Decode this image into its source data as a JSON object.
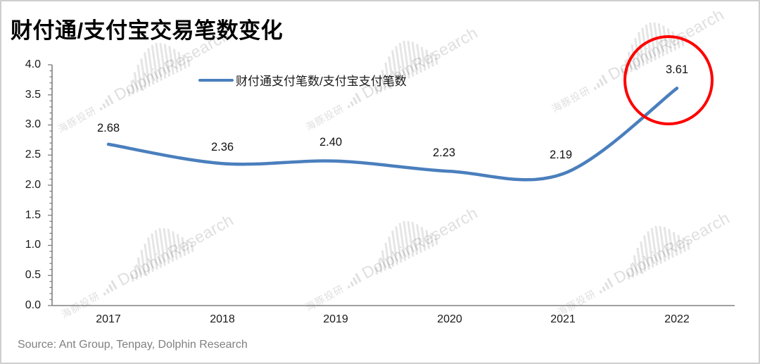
{
  "title": "财付通/支付宝交易笔数变化",
  "legend": {
    "label": "财付通支付笔数/支付宝支付笔数"
  },
  "source": "Source: Ant Group, Tenpay, Dolphin Research",
  "watermark": {
    "cn": "海豚投研",
    "en": "DolphinResearch"
  },
  "colors": {
    "line": "#4a7fbd",
    "highlight_circle": "#fe0000",
    "axis": "#808080",
    "title": "#000000",
    "source_text": "#808080"
  },
  "axis": {
    "y_ticks": [
      "4.0",
      "3.5",
      "3.0",
      "2.5",
      "2.0",
      "1.5",
      "1.0",
      "0.5",
      "0.0"
    ],
    "x_ticks": [
      "2017",
      "2018",
      "2019",
      "2020",
      "2021",
      "2022"
    ]
  },
  "chart_data": {
    "type": "line",
    "title": "财付通/支付宝交易笔数变化",
    "categories": [
      "2017",
      "2018",
      "2019",
      "2020",
      "2021",
      "2022"
    ],
    "series": [
      {
        "name": "财付通支付笔数/支付宝支付笔数",
        "values": [
          2.68,
          2.36,
          2.4,
          2.23,
          2.19,
          3.61
        ]
      }
    ],
    "data_labels": [
      "2.68",
      "2.36",
      "2.40",
      "2.23",
      "2.19",
      "3.61"
    ],
    "xlabel": "",
    "ylabel": "",
    "ylim": [
      0.0,
      4.0
    ],
    "y_tick_step": 0.5,
    "grid": false,
    "legend_position": "top-center",
    "line_style": "smooth",
    "annotations": [
      {
        "type": "circle",
        "target_category": "2022",
        "target_value": 3.61,
        "color": "#fe0000",
        "note": "red circle highlighting the 2022 value"
      }
    ]
  }
}
